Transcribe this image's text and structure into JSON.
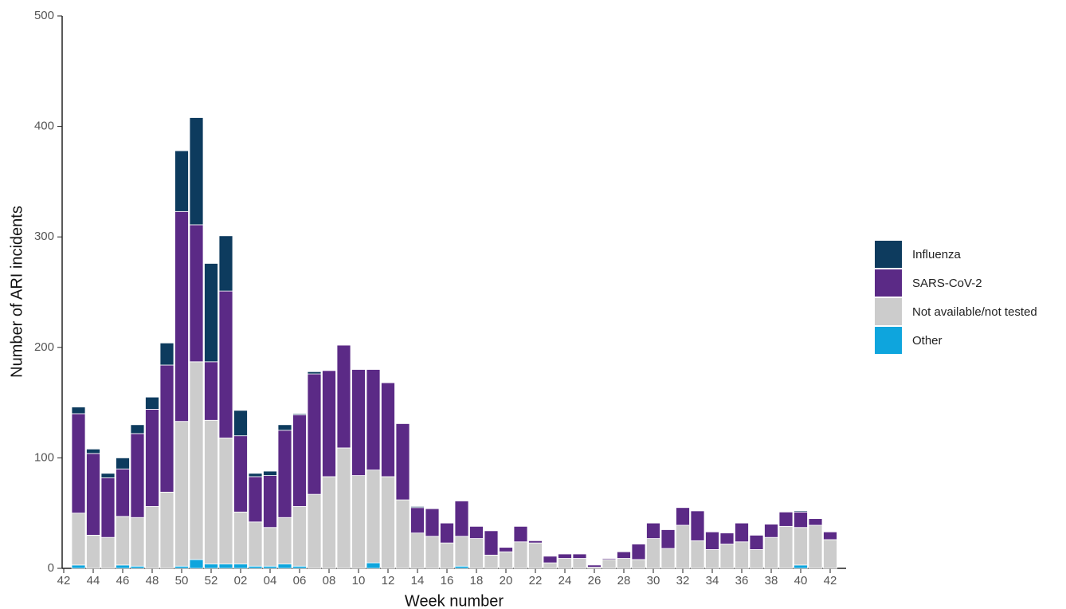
{
  "chart_data": {
    "type": "stacked_bar",
    "x_label": "Week number",
    "y_label": "Number of ARI incidents",
    "categories": [
      "42",
      null,
      "44",
      null,
      "46",
      null,
      "48",
      null,
      "50",
      null,
      "52",
      null,
      "02",
      null,
      "04",
      null,
      "06",
      null,
      "08",
      null,
      "10",
      null,
      "12",
      null,
      "14",
      null,
      "16",
      null,
      "18",
      null,
      "20",
      null,
      "22",
      null,
      "24",
      null,
      "26",
      null,
      "28",
      null,
      "30",
      null,
      "32",
      null,
      "34",
      null,
      "36",
      null,
      "38",
      null,
      "40",
      null,
      "42"
    ],
    "series": [
      {
        "name": "Influenza",
        "color": "#0d3b5e",
        "values": [
          null,
          6,
          4,
          4,
          10,
          8,
          11,
          20,
          55,
          97,
          89,
          50,
          23,
          3,
          4,
          5,
          1,
          2,
          0,
          0,
          0,
          0,
          0,
          0,
          1,
          0,
          0,
          0,
          0,
          0,
          0,
          0,
          0,
          0,
          0,
          0,
          0,
          0,
          0,
          0,
          0,
          0,
          0,
          0,
          0,
          0,
          0,
          0,
          0,
          0,
          1,
          0,
          0
        ]
      },
      {
        "name": "SARS-CoV-2",
        "color": "#5b2a86",
        "values": [
          null,
          90,
          74,
          54,
          43,
          76,
          88,
          115,
          190,
          124,
          53,
          133,
          69,
          41,
          47,
          79,
          83,
          109,
          96,
          93,
          96,
          91,
          85,
          69,
          23,
          25,
          18,
          32,
          11,
          22,
          4,
          14,
          2,
          6,
          4,
          4,
          2,
          1,
          6,
          14,
          14,
          17,
          16,
          27,
          16,
          10,
          17,
          13,
          12,
          13,
          14,
          6,
          7
        ]
      },
      {
        "name": "Not available/not tested",
        "color": "#cccccc",
        "values": [
          null,
          47,
          30,
          28,
          44,
          44,
          56,
          69,
          131,
          179,
          130,
          114,
          47,
          40,
          35,
          42,
          54,
          67,
          83,
          109,
          84,
          84,
          83,
          62,
          32,
          29,
          23,
          27,
          27,
          12,
          15,
          24,
          23,
          5,
          9,
          9,
          1,
          8,
          9,
          8,
          27,
          18,
          39,
          25,
          17,
          22,
          24,
          17,
          28,
          38,
          34,
          39,
          26
        ]
      },
      {
        "name": "Other",
        "color": "#0ea5dd",
        "values": [
          null,
          3,
          0,
          0,
          3,
          2,
          0,
          0,
          2,
          8,
          4,
          4,
          4,
          2,
          2,
          4,
          2,
          0,
          0,
          0,
          0,
          5,
          0,
          0,
          0,
          0,
          0,
          2,
          0,
          0,
          0,
          0,
          0,
          0,
          0,
          0,
          0,
          0,
          0,
          0,
          0,
          0,
          0,
          0,
          0,
          0,
          0,
          0,
          0,
          0,
          3,
          0,
          0
        ]
      }
    ],
    "ylim": [
      0,
      500
    ],
    "yticks": [
      0,
      100,
      200,
      300,
      400,
      500
    ],
    "grid": false,
    "legend": "right"
  }
}
